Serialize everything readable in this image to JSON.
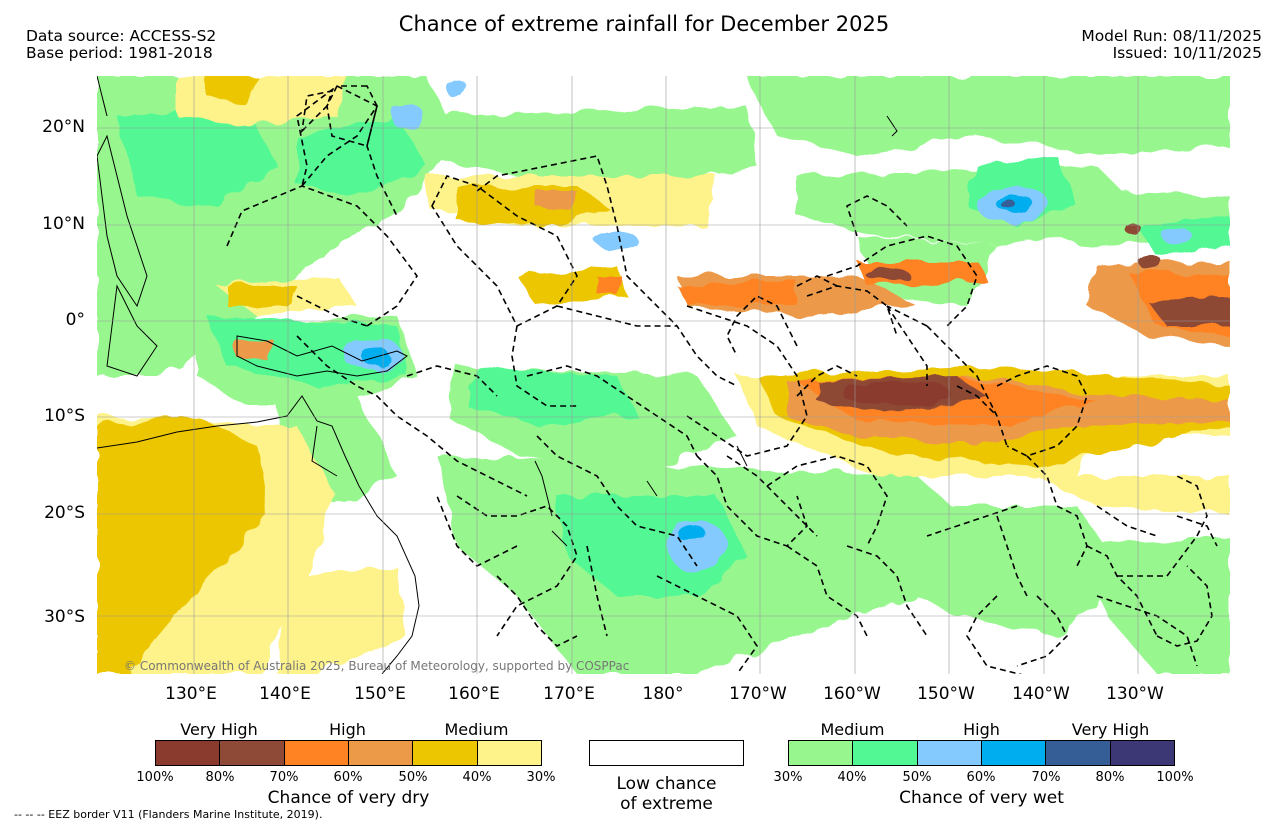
{
  "title": "Chance of extreme rainfall for December 2025",
  "header_left": [
    "Data source: ACCESS-S2",
    "Base period: 1981-2018"
  ],
  "header_right": [
    "Model Run: 08/11/2025",
    "Issued: 10/11/2025"
  ],
  "lat_labels": [
    "20°N",
    "10°N",
    "0°",
    "10°S",
    "20°S",
    "30°S"
  ],
  "lon_labels": [
    "130°E",
    "140°E",
    "150°E",
    "160°E",
    "170°E",
    "180°",
    "170°W",
    "160°W",
    "150°W",
    "140°W",
    "130°W"
  ],
  "copyright": "© Commonwealth of Australia 2025, Bureau of Meteorology, supported by COSPPac",
  "dry_scale": {
    "category_labels": [
      "Very High",
      "High",
      "Medium"
    ],
    "colors": [
      "#8b3a2e",
      "#8e4a36",
      "#ff8322",
      "#ec9a48",
      "#ecc600",
      "#fef28a"
    ],
    "ticks": [
      "100%",
      "80%",
      "70%",
      "60%",
      "50%",
      "40%",
      "30%"
    ],
    "caption": "Chance of very dry"
  },
  "low_chance": {
    "caption_line1": "Low chance",
    "caption_line2": "of extreme",
    "color": "#ffffff"
  },
  "wet_scale": {
    "category_labels": [
      "Medium",
      "High",
      "Very High"
    ],
    "colors": [
      "#97f78e",
      "#52f894",
      "#84caff",
      "#00aeef",
      "#355e96",
      "#3b3875"
    ],
    "ticks": [
      "30%",
      "40%",
      "50%",
      "60%",
      "70%",
      "80%",
      "100%"
    ],
    "caption": "Chance of very wet"
  },
  "eez_note": "-- -- -- EEZ border V11 (Flanders Marine Institute, 2019)."
}
